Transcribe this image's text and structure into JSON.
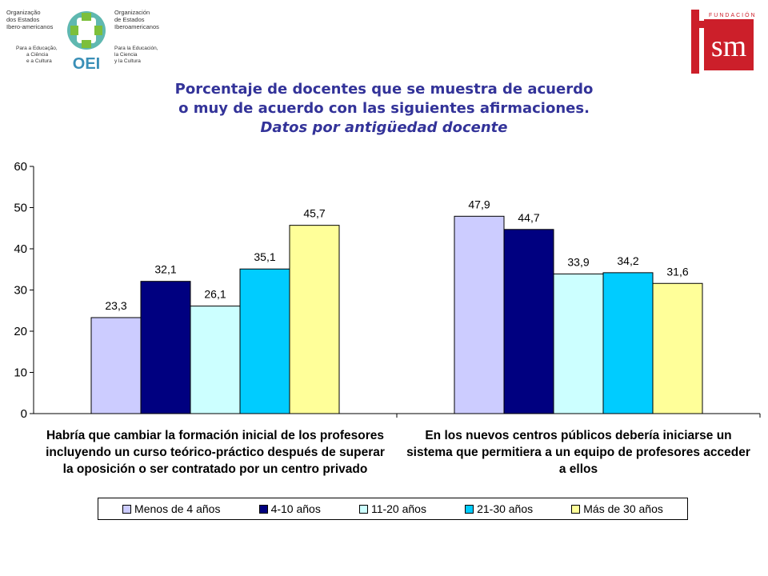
{
  "logos": {
    "oei": {
      "text_pt": [
        "Organização",
        "dos Estados",
        "Ibero-americanos"
      ],
      "text_pt_sub": [
        "Para a Educação,",
        "a Ciência",
        "e a Cultura"
      ],
      "text_es": [
        "Organización",
        "de Estados",
        "Iberoamericanos"
      ],
      "text_es_sub": [
        "Para la Educación,",
        "la Ciencia",
        "y la Cultura"
      ],
      "acronym": "OEI"
    },
    "fsm": {
      "fundacion": "FUNDACIÓN",
      "letters": "sm"
    }
  },
  "title": {
    "line1": "Porcentaje de docentes que se muestra de acuerdo",
    "line2": "o muy de acuerdo con las siguientes afirmaciones.",
    "line3": "Datos por antigüedad docente"
  },
  "chart_data": {
    "type": "bar",
    "ylim": [
      0,
      60
    ],
    "yticks": [
      "0",
      "10",
      "20",
      "30",
      "40",
      "50",
      "60"
    ],
    "categories": [
      [
        "Habría que cambiar la formación inicial de los profesores",
        "incluyendo un curso teórico-práctico después de superar",
        "la oposición o ser contratado por un centro privado"
      ],
      [
        "En los nuevos centros públicos debería iniciarse un",
        "sistema que permitiera a un equipo de profesores acceder",
        "a ellos"
      ]
    ],
    "series": [
      {
        "name": "Menos de 4 años",
        "color": "#ccccff",
        "values": [
          23.3,
          47.9
        ],
        "labels": [
          "23,3",
          "47,9"
        ]
      },
      {
        "name": "4-10 años",
        "color": "#000080",
        "values": [
          32.1,
          44.7
        ],
        "labels": [
          "32,1",
          "44,7"
        ]
      },
      {
        "name": "11-20 años",
        "color": "#ccffff",
        "values": [
          26.1,
          33.9
        ],
        "labels": [
          "26,1",
          "33,9"
        ]
      },
      {
        "name": "21-30 años",
        "color": "#00ccff",
        "values": [
          35.1,
          34.2
        ],
        "labels": [
          "35,1",
          "34,2"
        ]
      },
      {
        "name": "Más de 30 años",
        "color": "#ffff99",
        "values": [
          45.7,
          31.6
        ],
        "labels": [
          "45,7",
          "31,6"
        ]
      }
    ],
    "legend_position": "bottom"
  }
}
